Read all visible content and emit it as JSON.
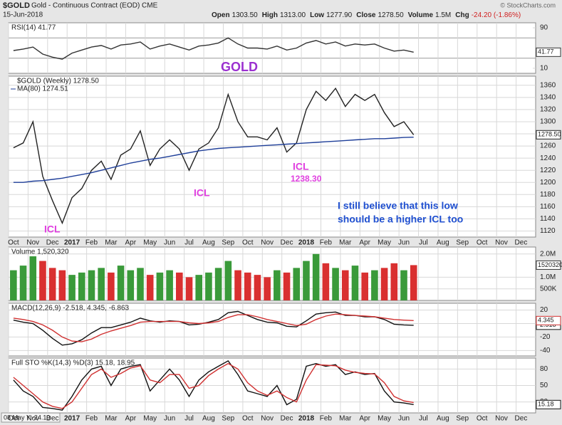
{
  "header": {
    "symbol": "$GOLD",
    "name": "Gold - Continuous Contract (EOD) CME",
    "date": "15-Jun-2018",
    "quote": [
      {
        "label": "Open",
        "value": "1303.50"
      },
      {
        "label": "High",
        "value": "1313.00"
      },
      {
        "label": "Low",
        "value": "1277.90"
      },
      {
        "label": "Close",
        "value": "1278.50"
      },
      {
        "label": "Volume",
        "value": "1.5M"
      },
      {
        "label": "Chg",
        "value": "-24.20 (-1.86%)"
      }
    ],
    "credit": "© StockCharts.com",
    "tooltip": "08 May Y:-24.19"
  },
  "chart_data": [
    {
      "type": "line",
      "title": "RSI(14) 41.77",
      "ylim": [
        0,
        100
      ],
      "yticks": [
        10,
        90
      ],
      "reference_lines": [
        30,
        70
      ],
      "series": [
        {
          "color": "#333333",
          "last_label": "41.77",
          "values": [
            45,
            48,
            52,
            38,
            32,
            28,
            40,
            46,
            52,
            55,
            48,
            56,
            58,
            62,
            48,
            54,
            58,
            52,
            46,
            54,
            56,
            60,
            70,
            58,
            50,
            50,
            48,
            54,
            46,
            50,
            60,
            65,
            58,
            62,
            54,
            58,
            56,
            58,
            50,
            44,
            46,
            41.77,
            null,
            null,
            null,
            null,
            null,
            null,
            null,
            null,
            null,
            null,
            null,
            null
          ]
        }
      ]
    },
    {
      "type": "line",
      "ylim": [
        1110,
        1375
      ],
      "yticks": [
        1120,
        1140,
        1160,
        1180,
        1200,
        1220,
        1240,
        1260,
        1280,
        1300,
        1320,
        1340,
        1360
      ],
      "grid": true,
      "categories": [
        "Oct",
        null,
        "Nov",
        null,
        "Dec",
        null,
        "2017",
        null,
        "Feb",
        null,
        "Mar",
        null,
        "Apr",
        null,
        "May",
        null,
        "Jun",
        null,
        "Jul",
        null,
        "Aug",
        null,
        "Sep",
        null,
        "Oct",
        null,
        "Nov",
        null,
        "Dec",
        null,
        "2018",
        null,
        "Feb",
        null,
        "Mar",
        null,
        "Apr",
        null,
        "May",
        null,
        "Jun",
        null,
        "Jul",
        null,
        "Aug",
        null,
        "Sep",
        null,
        "Oct",
        null,
        "Nov",
        null,
        "Dec",
        null
      ],
      "series": [
        {
          "name": "$GOLD (Weekly) 1278.50",
          "color": "#222222",
          "last_label": "1278.50",
          "values": [
            1257,
            1265,
            1300,
            1210,
            1170,
            1133,
            1175,
            1190,
            1220,
            1235,
            1205,
            1245,
            1255,
            1285,
            1228,
            1255,
            1270,
            1255,
            1220,
            1255,
            1265,
            1290,
            1345,
            1300,
            1275,
            1275,
            1270,
            1290,
            1250,
            1265,
            1320,
            1350,
            1335,
            1355,
            1325,
            1345,
            1335,
            1345,
            1315,
            1292,
            1300,
            1278.5,
            null,
            null,
            null,
            null,
            null,
            null,
            null,
            null,
            null,
            null,
            null,
            null
          ]
        },
        {
          "name": "MA(80) 1274.51",
          "color": "#1f3f99",
          "values": [
            1200,
            1200,
            1202,
            1203,
            1205,
            1207,
            1210,
            1213,
            1216,
            1220,
            1224,
            1228,
            1232,
            1235,
            1238,
            1240,
            1243,
            1246,
            1249,
            1252,
            1254,
            1256,
            1257,
            1258,
            1259,
            1260,
            1261,
            1262,
            1263,
            1264,
            1265,
            1266,
            1267,
            1268,
            1269,
            1270,
            1271,
            1272,
            1272,
            1273,
            1274,
            1274.51,
            null,
            null,
            null,
            null,
            null,
            null,
            null,
            null,
            null,
            null,
            null,
            null
          ]
        }
      ],
      "annotations": [
        "GOLD",
        "ICL",
        "ICL",
        "ICL",
        "1238.30",
        "I still believe that this low",
        "should be a higher ICL too"
      ]
    },
    {
      "type": "bar",
      "title": "Volume 1,520,320",
      "ylim": [
        0,
        2300000
      ],
      "yticks": [
        {
          "value": 500000,
          "label": "500K"
        },
        {
          "value": 1000000,
          "label": "1.0M"
        },
        {
          "value": 2000000,
          "label": "2.0M"
        }
      ],
      "grid": true,
      "series": [
        {
          "last_label": "1520320",
          "colors": [
            "#3a9a3a",
            "#3a9a3a",
            "#3a9a3a",
            "#d93030",
            "#d93030",
            "#d93030",
            "#3a9a3a",
            "#3a9a3a",
            "#3a9a3a",
            "#3a9a3a",
            "#d93030",
            "#3a9a3a",
            "#3a9a3a",
            "#3a9a3a",
            "#d93030",
            "#3a9a3a",
            "#3a9a3a",
            "#d93030",
            "#d93030",
            "#3a9a3a",
            "#3a9a3a",
            "#3a9a3a",
            "#3a9a3a",
            "#d93030",
            "#d93030",
            "#d93030",
            "#d93030",
            "#3a9a3a",
            "#d93030",
            "#3a9a3a",
            "#3a9a3a",
            "#3a9a3a",
            "#d93030",
            "#3a9a3a",
            "#d93030",
            "#3a9a3a",
            "#d93030",
            "#3a9a3a",
            "#d93030",
            "#d93030",
            "#3a9a3a",
            "#d93030"
          ],
          "values": [
            1300000,
            1500000,
            1900000,
            1700000,
            1400000,
            1300000,
            1100000,
            1200000,
            1300000,
            1400000,
            1200000,
            1500000,
            1300000,
            1400000,
            1100000,
            1200000,
            1300000,
            1200000,
            1000000,
            1100000,
            1200000,
            1400000,
            1700000,
            1300000,
            1200000,
            1100000,
            1000000,
            1300000,
            1200000,
            1400000,
            1700000,
            2000000,
            1600000,
            1400000,
            1300000,
            1500000,
            1200000,
            1300000,
            1400000,
            1600000,
            1300000,
            1520320,
            null,
            null,
            null,
            null,
            null,
            null,
            null,
            null,
            null,
            null,
            null,
            null
          ]
        }
      ]
    },
    {
      "type": "line",
      "title": "MACD(12,26,9) -2.518, 4.345, -6.863",
      "ylim": [
        -48,
        30
      ],
      "yticks": [
        -40,
        -20,
        0,
        20
      ],
      "grid": true,
      "series": [
        {
          "color": "#111111",
          "last_label": "-2.518",
          "values": [
            5,
            2,
            0,
            -10,
            -22,
            -32,
            -30,
            -24,
            -14,
            -6,
            -6,
            -2,
            2,
            8,
            4,
            2,
            4,
            3,
            -2,
            -1,
            2,
            6,
            16,
            18,
            12,
            6,
            2,
            1,
            -4,
            -5,
            4,
            14,
            16,
            17,
            12,
            12,
            10,
            10,
            6,
            -1,
            -2,
            -2.518,
            null,
            null,
            null,
            null,
            null,
            null,
            null,
            null,
            null,
            null,
            null,
            null
          ]
        },
        {
          "color": "#d03030",
          "last_label": "4.345",
          "values": [
            8,
            6,
            3,
            -2,
            -10,
            -20,
            -26,
            -27,
            -23,
            -16,
            -11,
            -7,
            -3,
            2,
            3,
            3,
            3,
            3,
            1,
            0,
            1,
            3,
            9,
            13,
            13,
            10,
            6,
            3,
            0,
            -3,
            -1,
            6,
            11,
            14,
            13,
            12,
            11,
            10,
            8,
            6,
            5,
            4.345,
            null,
            null,
            null,
            null,
            null,
            null,
            null,
            null,
            null,
            null,
            null,
            null
          ]
        }
      ]
    },
    {
      "type": "line",
      "title": "Full STO %K(14,3) %D(3) 15.18, 18.95",
      "ylim": [
        0,
        100
      ],
      "yticks": [
        20,
        50,
        80
      ],
      "grid": true,
      "series": [
        {
          "color": "#111111",
          "last_label": "15.18",
          "values": [
            60,
            40,
            30,
            10,
            8,
            5,
            30,
            60,
            80,
            85,
            50,
            80,
            85,
            88,
            40,
            60,
            80,
            60,
            30,
            60,
            75,
            85,
            95,
            70,
            40,
            35,
            30,
            50,
            15,
            25,
            85,
            90,
            85,
            88,
            70,
            75,
            70,
            72,
            40,
            20,
            18,
            15.18,
            null,
            null,
            null,
            null,
            null,
            null,
            null,
            null,
            null,
            null,
            null,
            null
          ]
        },
        {
          "color": "#d03030",
          "values": [
            65,
            50,
            35,
            20,
            12,
            8,
            20,
            45,
            70,
            80,
            65,
            72,
            82,
            86,
            60,
            55,
            70,
            70,
            45,
            50,
            68,
            80,
            90,
            80,
            55,
            40,
            32,
            40,
            28,
            20,
            60,
            88,
            87,
            86,
            78,
            74,
            72,
            71,
            55,
            30,
            22,
            18.95,
            null,
            null,
            null,
            null,
            null,
            null,
            null,
            null,
            null,
            null,
            null,
            null
          ]
        }
      ]
    }
  ]
}
